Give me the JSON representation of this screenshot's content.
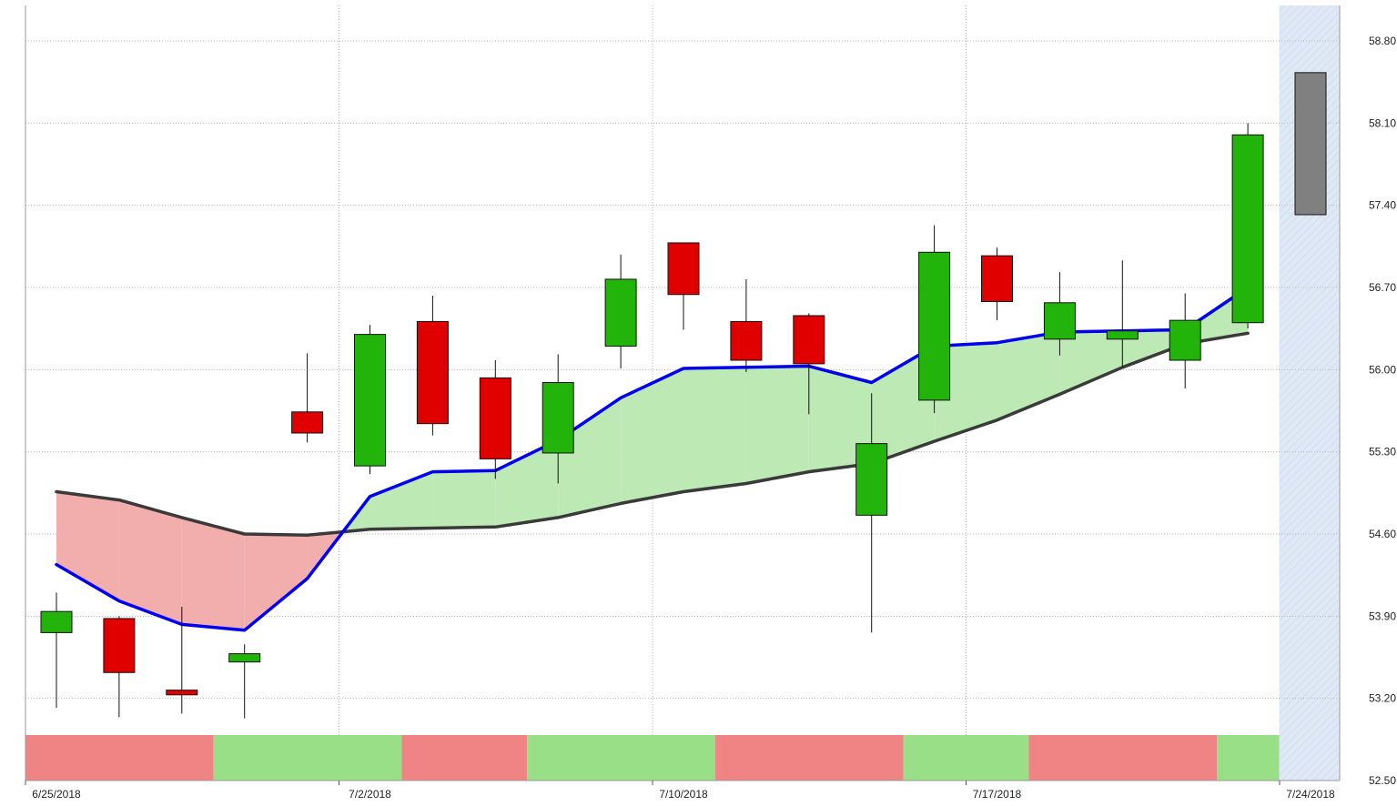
{
  "chart_data": {
    "type": "candlestick",
    "x_tick_labels": [
      "6/25/2018",
      "7/2/2018",
      "7/10/2018",
      "7/17/2018",
      "7/24/2018"
    ],
    "x_tick_positions": [
      0,
      5,
      10,
      15,
      20
    ],
    "y_tick_labels": [
      "58.80",
      "58.10",
      "57.40",
      "56.70",
      "56.00",
      "55.30",
      "54.60",
      "53.90",
      "53.20",
      "52.50"
    ],
    "ylim": [
      52.5,
      58.8
    ],
    "grid": true,
    "candles": [
      {
        "i": 0,
        "open": 53.76,
        "high": 54.1,
        "low": 53.12,
        "close": 53.94
      },
      {
        "i": 1,
        "open": 53.88,
        "high": 53.9,
        "low": 53.04,
        "close": 53.42
      },
      {
        "i": 2,
        "open": 53.27,
        "high": 53.98,
        "low": 53.07,
        "close": 53.23
      },
      {
        "i": 3,
        "open": 53.51,
        "high": 53.66,
        "low": 53.03,
        "close": 53.58
      },
      {
        "i": 4,
        "open": 55.64,
        "high": 56.14,
        "low": 55.38,
        "close": 55.46
      },
      {
        "i": 5,
        "open": 55.18,
        "high": 56.38,
        "low": 55.11,
        "close": 56.3
      },
      {
        "i": 6,
        "open": 56.41,
        "high": 56.63,
        "low": 55.44,
        "close": 55.54
      },
      {
        "i": 7,
        "open": 55.93,
        "high": 56.08,
        "low": 55.07,
        "close": 55.24
      },
      {
        "i": 8,
        "open": 55.29,
        "high": 56.13,
        "low": 55.03,
        "close": 55.89
      },
      {
        "i": 9,
        "open": 56.2,
        "high": 56.98,
        "low": 56.01,
        "close": 56.77
      },
      {
        "i": 10,
        "open": 57.08,
        "high": 57.08,
        "low": 56.34,
        "close": 56.64
      },
      {
        "i": 11,
        "open": 56.41,
        "high": 56.77,
        "low": 55.98,
        "close": 56.08
      },
      {
        "i": 12,
        "open": 56.46,
        "high": 56.48,
        "low": 55.62,
        "close": 56.05
      },
      {
        "i": 13,
        "open": 54.76,
        "high": 55.8,
        "low": 53.76,
        "close": 55.37
      },
      {
        "i": 14,
        "open": 55.74,
        "high": 57.23,
        "low": 55.63,
        "close": 57.0
      },
      {
        "i": 15,
        "open": 56.97,
        "high": 57.04,
        "low": 56.42,
        "close": 56.58
      },
      {
        "i": 16,
        "open": 56.26,
        "high": 56.83,
        "low": 56.12,
        "close": 56.57
      },
      {
        "i": 17,
        "open": 56.26,
        "high": 56.93,
        "low": 56.02,
        "close": 56.33
      },
      {
        "i": 18,
        "open": 56.08,
        "high": 56.65,
        "low": 55.84,
        "close": 56.42
      },
      {
        "i": 19,
        "open": 56.4,
        "high": 58.1,
        "low": 56.35,
        "close": 58.0
      }
    ],
    "projection": {
      "i": 20,
      "top": 58.53,
      "bottom": 57.32,
      "color": "#808080"
    },
    "fast_line": {
      "color": "#0000ee",
      "points": [
        [
          0,
          54.34
        ],
        [
          1,
          54.03
        ],
        [
          2,
          53.83
        ],
        [
          3,
          53.78
        ],
        [
          4,
          54.22
        ],
        [
          5,
          54.92
        ],
        [
          6,
          55.13
        ],
        [
          7,
          55.14
        ],
        [
          8,
          55.4
        ],
        [
          9,
          55.76
        ],
        [
          10,
          56.01
        ],
        [
          11,
          56.02
        ],
        [
          12,
          56.03
        ],
        [
          13,
          55.89
        ],
        [
          14,
          56.2
        ],
        [
          15,
          56.23
        ],
        [
          16,
          56.32
        ],
        [
          17,
          56.33
        ],
        [
          18,
          56.34
        ],
        [
          19,
          56.7
        ]
      ]
    },
    "slow_line": {
      "color": "#3a3a3a",
      "points": [
        [
          0,
          54.96
        ],
        [
          1,
          54.89
        ],
        [
          2,
          54.74
        ],
        [
          3,
          54.6
        ],
        [
          4,
          54.59
        ],
        [
          5,
          54.64
        ],
        [
          6,
          54.65
        ],
        [
          7,
          54.66
        ],
        [
          8,
          54.74
        ],
        [
          9,
          54.86
        ],
        [
          10,
          54.96
        ],
        [
          11,
          55.03
        ],
        [
          12,
          55.13
        ],
        [
          13,
          55.2
        ],
        [
          14,
          55.39
        ],
        [
          15,
          55.57
        ],
        [
          16,
          55.79
        ],
        [
          17,
          56.02
        ],
        [
          18,
          56.22
        ],
        [
          19,
          56.31
        ]
      ]
    },
    "band_colors": {
      "positive": "#bde9b5",
      "negative": "#f2adad"
    },
    "trend_bar": [
      {
        "from": 0,
        "to": 3,
        "state": "down"
      },
      {
        "from": 3,
        "to": 6,
        "state": "up"
      },
      {
        "from": 6,
        "to": 8,
        "state": "down"
      },
      {
        "from": 8,
        "to": 11,
        "state": "up"
      },
      {
        "from": 11,
        "to": 14,
        "state": "down"
      },
      {
        "from": 14,
        "to": 16,
        "state": "up"
      },
      {
        "from": 16,
        "to": 19,
        "state": "down"
      },
      {
        "from": 19,
        "to": 20,
        "state": "up"
      }
    ],
    "colors": {
      "up": "#22b40a",
      "down": "#e00000",
      "trend_up": "#98df88",
      "trend_down": "#f08484",
      "future_zone": "#dfe9f5"
    }
  }
}
